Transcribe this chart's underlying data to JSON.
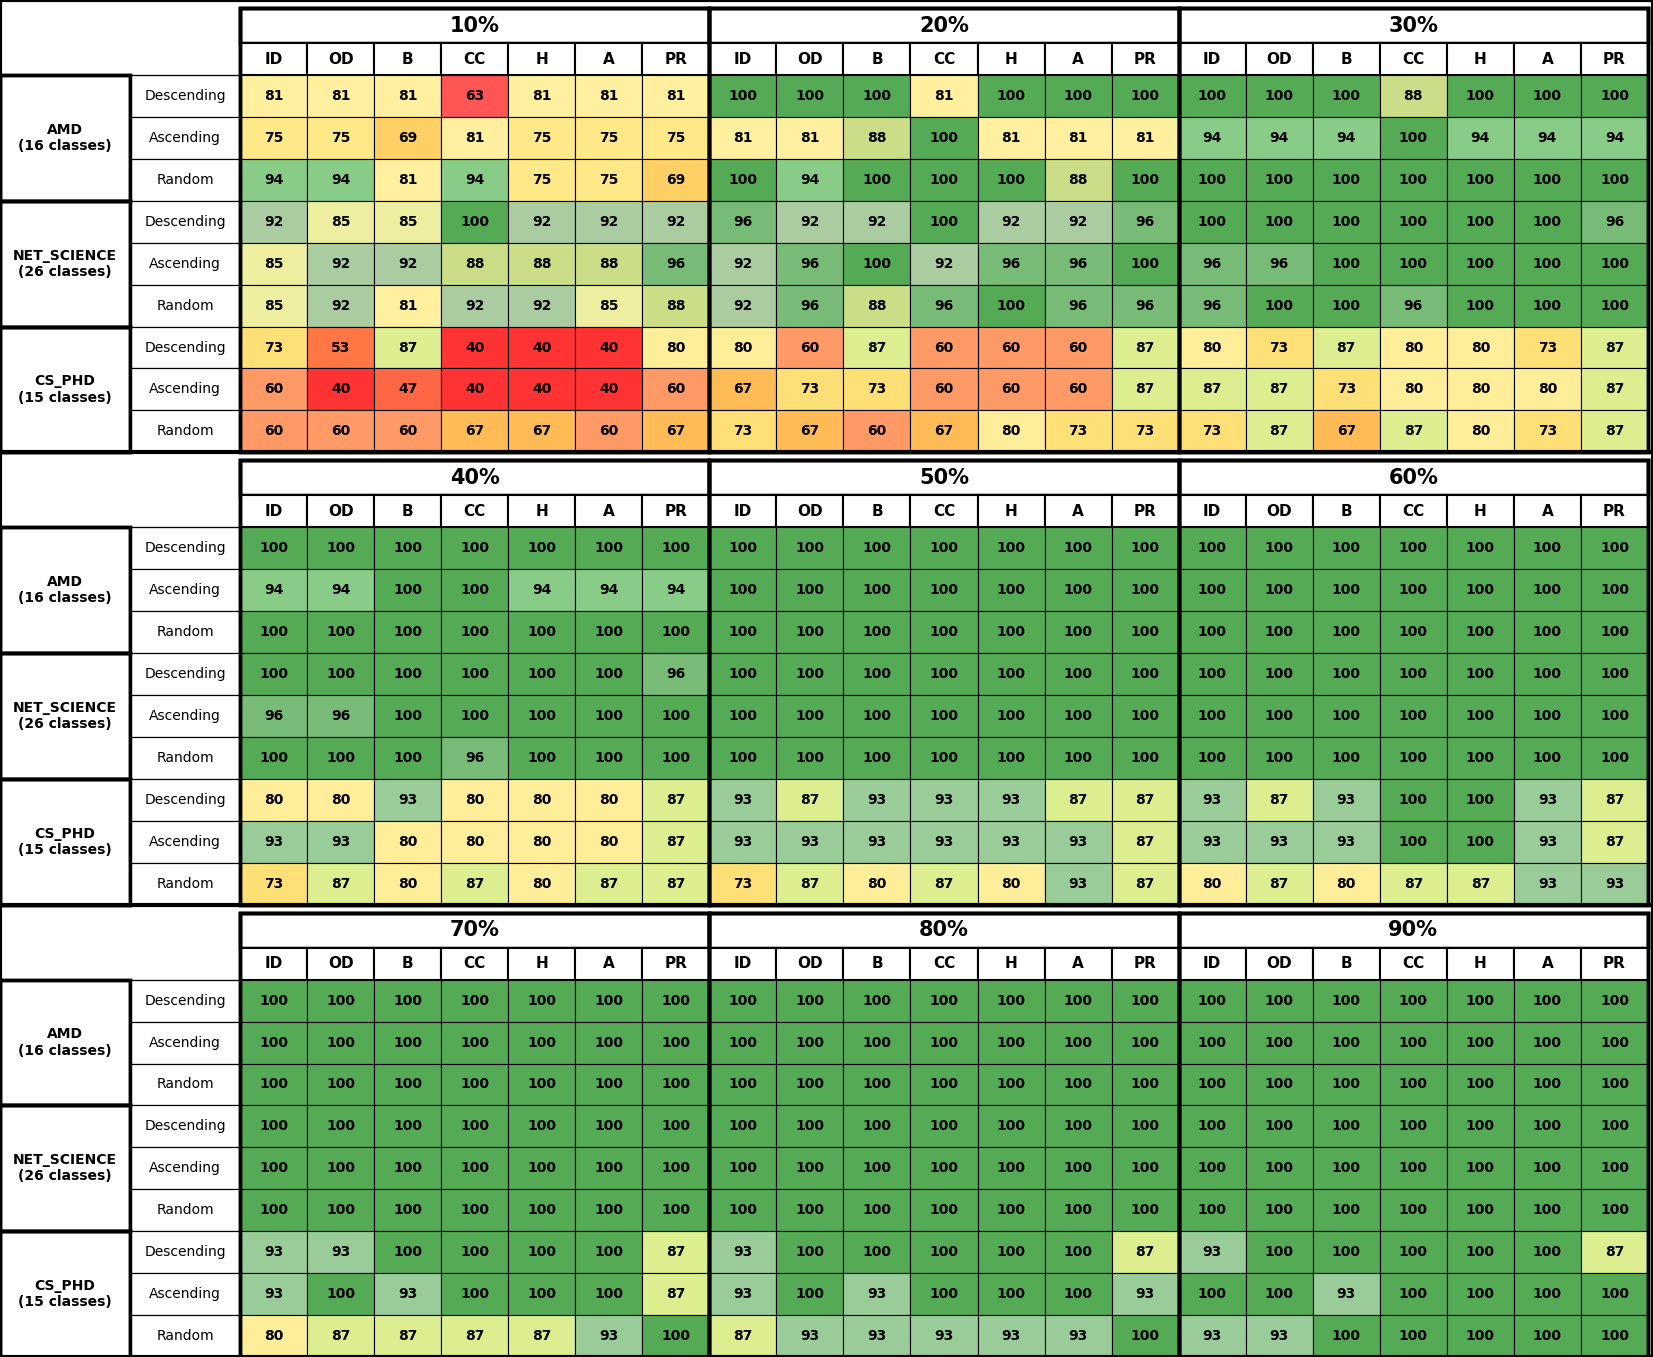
{
  "tables": [
    {
      "pct_label": "10%",
      "data": [
        [
          81,
          81,
          81,
          63,
          81,
          81,
          81
        ],
        [
          75,
          75,
          69,
          81,
          75,
          75,
          75
        ],
        [
          94,
          94,
          81,
          94,
          75,
          75,
          69
        ],
        [
          92,
          85,
          85,
          100,
          92,
          92,
          92
        ],
        [
          85,
          92,
          92,
          88,
          88,
          88,
          96
        ],
        [
          85,
          92,
          81,
          92,
          92,
          85,
          88
        ],
        [
          73,
          53,
          87,
          40,
          40,
          40,
          80
        ],
        [
          60,
          40,
          47,
          40,
          40,
          40,
          60
        ],
        [
          60,
          60,
          60,
          67,
          67,
          60,
          67
        ]
      ]
    },
    {
      "pct_label": "20%",
      "data": [
        [
          100,
          100,
          100,
          81,
          100,
          100,
          100
        ],
        [
          81,
          81,
          88,
          100,
          81,
          81,
          81
        ],
        [
          100,
          94,
          100,
          100,
          100,
          88,
          100
        ],
        [
          96,
          92,
          92,
          100,
          92,
          92,
          96
        ],
        [
          92,
          96,
          100,
          92,
          96,
          96,
          100
        ],
        [
          92,
          96,
          88,
          96,
          100,
          96,
          96
        ],
        [
          80,
          60,
          87,
          60,
          60,
          60,
          87
        ],
        [
          67,
          73,
          73,
          60,
          60,
          60,
          87
        ],
        [
          73,
          67,
          60,
          67,
          80,
          73,
          73
        ]
      ]
    },
    {
      "pct_label": "30%",
      "data": [
        [
          100,
          100,
          100,
          88,
          100,
          100,
          100
        ],
        [
          94,
          94,
          94,
          100,
          94,
          94,
          94
        ],
        [
          100,
          100,
          100,
          100,
          100,
          100,
          100
        ],
        [
          100,
          100,
          100,
          100,
          100,
          100,
          96
        ],
        [
          96,
          96,
          100,
          100,
          100,
          100,
          100
        ],
        [
          96,
          100,
          100,
          96,
          100,
          100,
          100
        ],
        [
          80,
          73,
          87,
          80,
          80,
          73,
          87
        ],
        [
          87,
          87,
          73,
          80,
          80,
          80,
          87
        ],
        [
          73,
          87,
          67,
          87,
          80,
          73,
          87
        ]
      ]
    },
    {
      "pct_label": "40%",
      "data": [
        [
          100,
          100,
          100,
          100,
          100,
          100,
          100
        ],
        [
          94,
          94,
          100,
          100,
          94,
          94,
          94
        ],
        [
          100,
          100,
          100,
          100,
          100,
          100,
          100
        ],
        [
          100,
          100,
          100,
          100,
          100,
          100,
          96
        ],
        [
          96,
          96,
          100,
          100,
          100,
          100,
          100
        ],
        [
          100,
          100,
          100,
          96,
          100,
          100,
          100
        ],
        [
          80,
          80,
          93,
          80,
          80,
          80,
          87
        ],
        [
          93,
          93,
          80,
          80,
          80,
          80,
          87
        ],
        [
          73,
          87,
          80,
          87,
          80,
          87,
          87
        ]
      ]
    },
    {
      "pct_label": "50%",
      "data": [
        [
          100,
          100,
          100,
          100,
          100,
          100,
          100
        ],
        [
          100,
          100,
          100,
          100,
          100,
          100,
          100
        ],
        [
          100,
          100,
          100,
          100,
          100,
          100,
          100
        ],
        [
          100,
          100,
          100,
          100,
          100,
          100,
          100
        ],
        [
          100,
          100,
          100,
          100,
          100,
          100,
          100
        ],
        [
          100,
          100,
          100,
          100,
          100,
          100,
          100
        ],
        [
          93,
          87,
          93,
          93,
          93,
          87,
          87
        ],
        [
          93,
          93,
          93,
          93,
          93,
          93,
          87
        ],
        [
          73,
          87,
          80,
          87,
          80,
          93,
          87
        ]
      ]
    },
    {
      "pct_label": "60%",
      "data": [
        [
          100,
          100,
          100,
          100,
          100,
          100,
          100
        ],
        [
          100,
          100,
          100,
          100,
          100,
          100,
          100
        ],
        [
          100,
          100,
          100,
          100,
          100,
          100,
          100
        ],
        [
          100,
          100,
          100,
          100,
          100,
          100,
          100
        ],
        [
          100,
          100,
          100,
          100,
          100,
          100,
          100
        ],
        [
          100,
          100,
          100,
          100,
          100,
          100,
          100
        ],
        [
          93,
          87,
          93,
          100,
          100,
          93,
          87
        ],
        [
          93,
          93,
          93,
          100,
          100,
          93,
          87
        ],
        [
          80,
          87,
          80,
          87,
          87,
          93,
          93
        ]
      ]
    },
    {
      "pct_label": "70%",
      "data": [
        [
          100,
          100,
          100,
          100,
          100,
          100,
          100
        ],
        [
          100,
          100,
          100,
          100,
          100,
          100,
          100
        ],
        [
          100,
          100,
          100,
          100,
          100,
          100,
          100
        ],
        [
          100,
          100,
          100,
          100,
          100,
          100,
          100
        ],
        [
          100,
          100,
          100,
          100,
          100,
          100,
          100
        ],
        [
          100,
          100,
          100,
          100,
          100,
          100,
          100
        ],
        [
          93,
          93,
          100,
          100,
          100,
          100,
          87
        ],
        [
          93,
          100,
          93,
          100,
          100,
          100,
          87
        ],
        [
          80,
          87,
          87,
          87,
          87,
          93,
          100
        ]
      ]
    },
    {
      "pct_label": "80%",
      "data": [
        [
          100,
          100,
          100,
          100,
          100,
          100,
          100
        ],
        [
          100,
          100,
          100,
          100,
          100,
          100,
          100
        ],
        [
          100,
          100,
          100,
          100,
          100,
          100,
          100
        ],
        [
          100,
          100,
          100,
          100,
          100,
          100,
          100
        ],
        [
          100,
          100,
          100,
          100,
          100,
          100,
          100
        ],
        [
          100,
          100,
          100,
          100,
          100,
          100,
          100
        ],
        [
          93,
          100,
          100,
          100,
          100,
          100,
          87
        ],
        [
          93,
          100,
          93,
          100,
          100,
          100,
          93
        ],
        [
          87,
          93,
          93,
          93,
          93,
          93,
          100
        ]
      ]
    },
    {
      "pct_label": "90%",
      "data": [
        [
          100,
          100,
          100,
          100,
          100,
          100,
          100
        ],
        [
          100,
          100,
          100,
          100,
          100,
          100,
          100
        ],
        [
          100,
          100,
          100,
          100,
          100,
          100,
          100
        ],
        [
          100,
          100,
          100,
          100,
          100,
          100,
          100
        ],
        [
          100,
          100,
          100,
          100,
          100,
          100,
          100
        ],
        [
          100,
          100,
          100,
          100,
          100,
          100,
          100
        ],
        [
          93,
          100,
          100,
          100,
          100,
          100,
          87
        ],
        [
          100,
          100,
          93,
          100,
          100,
          100,
          100
        ],
        [
          93,
          93,
          100,
          100,
          100,
          100,
          100
        ]
      ]
    }
  ],
  "col_labels": [
    "ID",
    "OD",
    "B",
    "CC",
    "H",
    "A",
    "PR"
  ],
  "row_labels": [
    "Descending",
    "Ascending",
    "Random",
    "Descending",
    "Ascending",
    "Random",
    "Descending",
    "Ascending",
    "Random"
  ],
  "group_labels": [
    "AMD\n(16 classes)",
    "NET_SCIENCE\n(26 classes)",
    "CS_PHD\n(15 classes)"
  ]
}
